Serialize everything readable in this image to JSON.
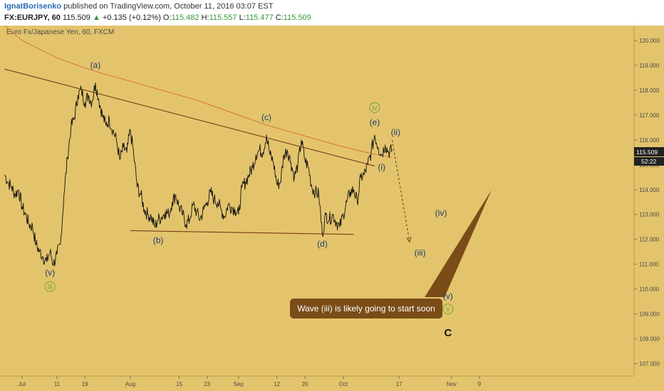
{
  "header": {
    "author": "IgnatBorisenko",
    "published": " published on TradingView.com, October 11, 2016 03:07 EST",
    "symbol": "FX:EURJPY, 60",
    "last": "115.509",
    "change_arrow": "▲",
    "change": "+0.135 (+0.12%)",
    "o_label": "O:",
    "o": "115.482",
    "h_label": "H:",
    "h": "115.557",
    "l_label": "L:",
    "l": "115.477",
    "c_label": "C:",
    "c": "115.509"
  },
  "chart_data": {
    "type": "line",
    "title": "Euro Fx/Japanese Yen, 60, FXCM",
    "xlabel": "",
    "ylabel": "",
    "ylim": [
      106.5,
      120.6
    ],
    "y_ticks": [
      "107.000",
      "108.000",
      "109.000",
      "110.000",
      "111.000",
      "112.000",
      "113.000",
      "114.000",
      "115.000",
      "116.000",
      "117.000",
      "118.000",
      "119.000",
      "120.000"
    ],
    "x_ticks": [
      {
        "label": "Jul",
        "d": 0
      },
      {
        "label": "11",
        "d": 10
      },
      {
        "label": "19",
        "d": 18
      },
      {
        "label": "Aug",
        "d": 31
      },
      {
        "label": "15",
        "d": 45
      },
      {
        "label": "23",
        "d": 53
      },
      {
        "label": "Sep",
        "d": 62
      },
      {
        "label": "12",
        "d": 73
      },
      {
        "label": "20",
        "d": 81
      },
      {
        "label": "Oct",
        "d": 92
      },
      {
        "label": "17",
        "d": 108
      },
      {
        "label": "Nov",
        "d": 123
      },
      {
        "label": "9",
        "d": 131
      }
    ],
    "grid": false,
    "price_series": {
      "name": "",
      "points": [
        [
          -5,
          114.6
        ],
        [
          -4,
          114.3
        ],
        [
          -3,
          114.1
        ],
        [
          -2,
          113.8
        ],
        [
          -1,
          114.0
        ],
        [
          0,
          113.3
        ],
        [
          1,
          113.0
        ],
        [
          2,
          112.6
        ],
        [
          3,
          112.5
        ],
        [
          4,
          111.8
        ],
        [
          5,
          111.5
        ],
        [
          6,
          111.3
        ],
        [
          7,
          111.1
        ],
        [
          8,
          111.5
        ],
        [
          9,
          111.0
        ],
        [
          10,
          111.4
        ],
        [
          11,
          111.8
        ],
        [
          12,
          113.8
        ],
        [
          13,
          115.3
        ],
        [
          14,
          116.5
        ],
        [
          15,
          116.9
        ],
        [
          16,
          117.8
        ],
        [
          17,
          118.0
        ],
        [
          18,
          117.5
        ],
        [
          19,
          117.8
        ],
        [
          20,
          117.5
        ],
        [
          21,
          118.3
        ],
        [
          22,
          117.6
        ],
        [
          23,
          117.0
        ],
        [
          24,
          116.6
        ],
        [
          25,
          116.8
        ],
        [
          26,
          116.4
        ],
        [
          27,
          116.0
        ],
        [
          28,
          115.2
        ],
        [
          29,
          115.7
        ],
        [
          30,
          115.5
        ],
        [
          31,
          116.4
        ],
        [
          32,
          115.4
        ],
        [
          33,
          114.1
        ],
        [
          34,
          113.8
        ],
        [
          35,
          113.2
        ],
        [
          36,
          113.0
        ],
        [
          37,
          112.9
        ],
        [
          38,
          112.5
        ],
        [
          39,
          112.8
        ],
        [
          40,
          112.9
        ],
        [
          41,
          113.1
        ],
        [
          42,
          113.0
        ],
        [
          43,
          113.5
        ],
        [
          44,
          113.8
        ],
        [
          45,
          113.3
        ],
        [
          46,
          113.0
        ],
        [
          47,
          112.6
        ],
        [
          48,
          112.8
        ],
        [
          49,
          113.4
        ],
        [
          50,
          113.1
        ],
        [
          51,
          112.8
        ],
        [
          52,
          113.2
        ],
        [
          53,
          113.5
        ],
        [
          54,
          113.9
        ],
        [
          55,
          113.6
        ],
        [
          56,
          113.5
        ],
        [
          57,
          113.2
        ],
        [
          58,
          112.9
        ],
        [
          59,
          113.4
        ],
        [
          60,
          113.3
        ],
        [
          61,
          113.2
        ],
        [
          62,
          113.0
        ],
        [
          63,
          114.1
        ],
        [
          64,
          114.3
        ],
        [
          65,
          114.6
        ],
        [
          66,
          114.9
        ],
        [
          67,
          115.4
        ],
        [
          68,
          115.6
        ],
        [
          69,
          115.5
        ],
        [
          70,
          116.2
        ],
        [
          71,
          115.4
        ],
        [
          72,
          115.1
        ],
        [
          73,
          114.2
        ],
        [
          74,
          114.3
        ],
        [
          75,
          115.4
        ],
        [
          76,
          115.6
        ],
        [
          77,
          115.1
        ],
        [
          78,
          114.5
        ],
        [
          79,
          115.0
        ],
        [
          80,
          116.0
        ],
        [
          81,
          115.2
        ],
        [
          82,
          114.9
        ],
        [
          83,
          114.1
        ],
        [
          84,
          113.9
        ],
        [
          85,
          113.8
        ],
        [
          86,
          112.2
        ],
        [
          87,
          113.0
        ],
        [
          88,
          112.8
        ],
        [
          89,
          113.0
        ],
        [
          90,
          112.7
        ],
        [
          91,
          112.5
        ],
        [
          92,
          113.0
        ],
        [
          93,
          113.5
        ],
        [
          94,
          113.9
        ],
        [
          95,
          114.0
        ],
        [
          96,
          113.5
        ],
        [
          97,
          114.5
        ],
        [
          98,
          114.6
        ],
        [
          99,
          115.0
        ],
        [
          100,
          115.5
        ],
        [
          101,
          116.2
        ],
        [
          102,
          115.7
        ],
        [
          103,
          115.4
        ],
        [
          104,
          115.8
        ],
        [
          105,
          115.5
        ],
        [
          106,
          115.6
        ]
      ]
    },
    "moving_average": {
      "name": "",
      "points": [
        [
          -5,
          120.6
        ],
        [
          0,
          120.0
        ],
        [
          10,
          119.3
        ],
        [
          20,
          118.8
        ],
        [
          30,
          118.4
        ],
        [
          40,
          118.0
        ],
        [
          50,
          117.6
        ],
        [
          60,
          117.1
        ],
        [
          70,
          116.6
        ],
        [
          80,
          116.2
        ],
        [
          90,
          115.8
        ],
        [
          100,
          115.45
        ],
        [
          106,
          115.3
        ]
      ]
    },
    "trendlines": [
      {
        "from": [
          -5,
          118.85
        ],
        "to": [
          101,
          114.95
        ],
        "color": "#7a3b1c"
      },
      {
        "from": [
          31,
          112.35
        ],
        "to": [
          95,
          112.2
        ],
        "color": "#7a3b1c"
      }
    ],
    "projection": [
      [
        106,
        116.0
      ],
      [
        111,
        111.9
      ]
    ],
    "wave_labels": [
      {
        "text": "(a)",
        "d": 21,
        "y": 118.9,
        "color": "#1c3d6b"
      },
      {
        "text": "(b)",
        "d": 39,
        "y": 111.85,
        "color": "#1c3d6b"
      },
      {
        "text": "(c)",
        "d": 70,
        "y": 116.8,
        "color": "#1c3d6b"
      },
      {
        "text": "(d)",
        "d": 86,
        "y": 111.7,
        "color": "#1c3d6b"
      },
      {
        "text": "(e)",
        "d": 101,
        "y": 116.6,
        "color": "#1c3d6b"
      },
      {
        "text": "(i)",
        "d": 103,
        "y": 114.8,
        "color": "#1c3d6b"
      },
      {
        "text": "(ii)",
        "d": 107,
        "y": 116.2,
        "color": "#1c3d6b"
      },
      {
        "text": "(iii)",
        "d": 114,
        "y": 111.35,
        "color": "#1c3d6b"
      },
      {
        "text": "(iv)",
        "d": 120,
        "y": 112.95,
        "color": "#1c3d6b"
      },
      {
        "text": "(v)",
        "d": 8,
        "y": 110.55,
        "color": "#1c3d6b"
      },
      {
        "text": "(v)",
        "d": 122,
        "y": 109.6,
        "color": "#1c3d6b"
      },
      {
        "text": "C",
        "d": 122,
        "y": 108.1,
        "color": "#111111"
      }
    ],
    "circled_labels": [
      {
        "text": "iii",
        "d": 8,
        "y": 110.1
      },
      {
        "text": "iv",
        "d": 101,
        "y": 117.3
      },
      {
        "text": "v",
        "d": 122,
        "y": 109.2
      }
    ],
    "current_price": {
      "value": "115.509",
      "countdown": "52:22"
    },
    "callout": {
      "text": "Wave (iii) is likely going to start soon"
    },
    "colors": {
      "background": "#e3c46c",
      "price": "#111111",
      "ma": "#d9743c",
      "trendline": "#7a3b1c",
      "wave_label": "#1c3d6b",
      "circle": "#6fa43a",
      "callout": "#7a4c17",
      "axis_text": "#4a4a4a"
    }
  }
}
